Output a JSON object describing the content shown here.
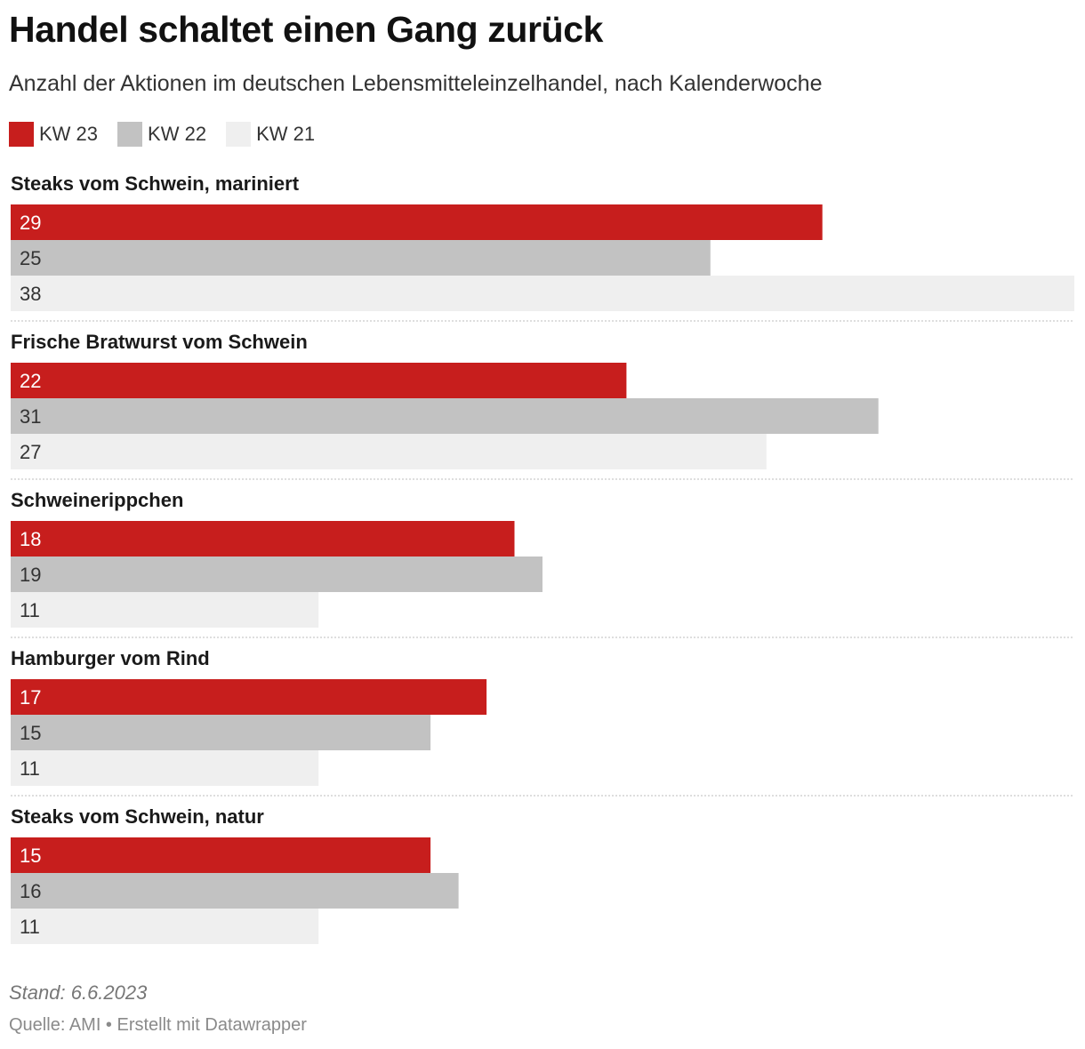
{
  "header": {
    "title": "Handel schaltet einen Gang zurück",
    "subtitle": "Anzahl der Aktionen im deutschen Lebensmitteleinzelhandel, nach Kalenderwoche"
  },
  "legend": [
    {
      "label": "KW 23",
      "color": "#c71e1d"
    },
    {
      "label": "KW 22",
      "color": "#c2c2c2"
    },
    {
      "label": "KW 21",
      "color": "#efefef"
    }
  ],
  "chart_data": {
    "type": "bar",
    "orientation": "horizontal",
    "title": "Handel schaltet einen Gang zurück",
    "xlabel": "",
    "ylabel": "",
    "xlim": [
      0,
      38
    ],
    "grid": false,
    "legend_position": "top-left",
    "categories": [
      "Steaks vom Schwein, mariniert",
      "Frische Bratwurst vom Schwein",
      "Schweinerippchen",
      "Hamburger vom Rind",
      "Steaks vom Schwein, natur"
    ],
    "series": [
      {
        "name": "KW 23",
        "color": "#c71e1d",
        "label_color": "#ffffff",
        "values": [
          29,
          22,
          18,
          17,
          15
        ]
      },
      {
        "name": "KW 22",
        "color": "#c2c2c2",
        "label_color": "#333333",
        "values": [
          25,
          31,
          19,
          15,
          16
        ]
      },
      {
        "name": "KW 21",
        "color": "#efefef",
        "label_color": "#333333",
        "values": [
          38,
          27,
          11,
          11,
          11
        ]
      }
    ]
  },
  "footer": {
    "date_note": "Stand: 6.6.2023",
    "source": "Quelle: AMI • Erstellt mit Datawrapper"
  }
}
